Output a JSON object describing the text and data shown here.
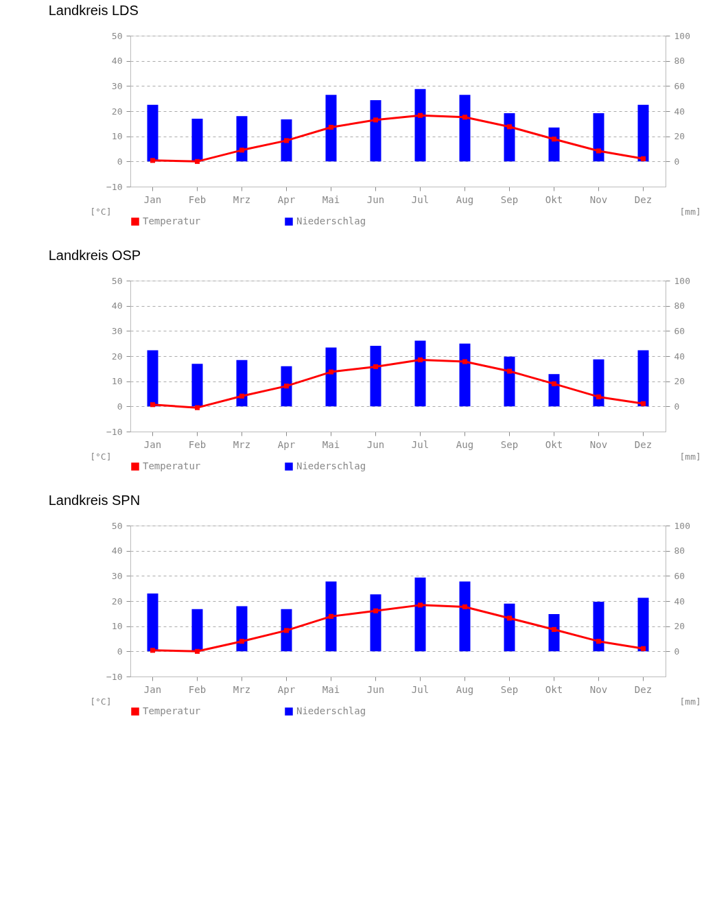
{
  "chart_data": [
    {
      "type": "bar",
      "title": "Landkreis LDS",
      "categories": [
        "Jan",
        "Feb",
        "Mrz",
        "Apr",
        "Mai",
        "Jun",
        "Jul",
        "Aug",
        "Sep",
        "Okt",
        "Nov",
        "Dez"
      ],
      "ylabel": "[°C]",
      "y2label": "[mm]",
      "ylim": [
        -10,
        50
      ],
      "yticks": [
        -10,
        0,
        10,
        20,
        30,
        40,
        50
      ],
      "y2lim": [
        -20,
        100
      ],
      "y2ticks": [
        0,
        20,
        40,
        60,
        80,
        100
      ],
      "grid": "y",
      "legend": "bottom",
      "marker": "square",
      "series": [
        {
          "name": "Temperatur",
          "type": "line",
          "color": "#ff0000",
          "values": [
            0.4,
            0,
            4.5,
            8.3,
            13.6,
            16.5,
            18.3,
            17.6,
            13.8,
            8.9,
            4.2,
            1.1
          ]
        },
        {
          "name": "Niederschlag",
          "axis": "y2",
          "color": "#0000ff",
          "values": [
            45,
            34,
            36,
            33.5,
            53,
            48.7,
            57.6,
            53,
            38.4,
            27,
            38.4,
            45
          ]
        }
      ]
    },
    {
      "type": "bar",
      "title": "Landkreis OSP",
      "categories": [
        "Jan",
        "Feb",
        "Mrz",
        "Apr",
        "Mai",
        "Jun",
        "Jul",
        "Aug",
        "Sep",
        "Okt",
        "Nov",
        "Dez"
      ],
      "ylabel": "[°C]",
      "y2label": "[mm]",
      "ylim": [
        -10,
        50
      ],
      "yticks": [
        -10,
        0,
        10,
        20,
        30,
        40,
        50
      ],
      "y2lim": [
        -20,
        100
      ],
      "y2ticks": [
        0,
        20,
        40,
        60,
        80,
        100
      ],
      "grid": "y",
      "legend": "bottom",
      "marker": "square",
      "series": [
        {
          "name": "Temperatur",
          "type": "line",
          "color": "#ff0000",
          "values": [
            0.7,
            -0.5,
            4.1,
            8.1,
            13.7,
            15.8,
            18.5,
            17.8,
            14,
            9,
            3.8,
            1.1
          ]
        },
        {
          "name": "Niederschlag",
          "axis": "y2",
          "color": "#0000ff",
          "values": [
            44.6,
            33.8,
            36.9,
            32,
            46.8,
            48.2,
            52.3,
            50,
            39.6,
            25.7,
            37.4,
            44.6
          ]
        }
      ]
    },
    {
      "type": "bar",
      "title": "Landkreis SPN",
      "categories": [
        "Jan",
        "Feb",
        "Mrz",
        "Apr",
        "Mai",
        "Jun",
        "Jul",
        "Aug",
        "Sep",
        "Okt",
        "Nov",
        "Dez"
      ],
      "ylabel": "[°C]",
      "y2label": "[mm]",
      "ylim": [
        -10,
        50
      ],
      "yticks": [
        -10,
        0,
        10,
        20,
        30,
        40,
        50
      ],
      "y2lim": [
        -20,
        100
      ],
      "y2ticks": [
        0,
        20,
        40,
        60,
        80,
        100
      ],
      "grid": "y",
      "legend": "bottom",
      "marker": "square",
      "series": [
        {
          "name": "Temperatur",
          "type": "line",
          "color": "#ff0000",
          "values": [
            0.4,
            0,
            4,
            8.3,
            13.9,
            16.1,
            18.4,
            17.7,
            13.2,
            8.7,
            4,
            1.1
          ]
        },
        {
          "name": "Niederschlag",
          "axis": "y2",
          "color": "#0000ff",
          "values": [
            46,
            33.6,
            35.9,
            33.6,
            55.6,
            45.3,
            58.7,
            55.6,
            38,
            29.6,
            39.5,
            42.6
          ]
        }
      ]
    }
  ]
}
